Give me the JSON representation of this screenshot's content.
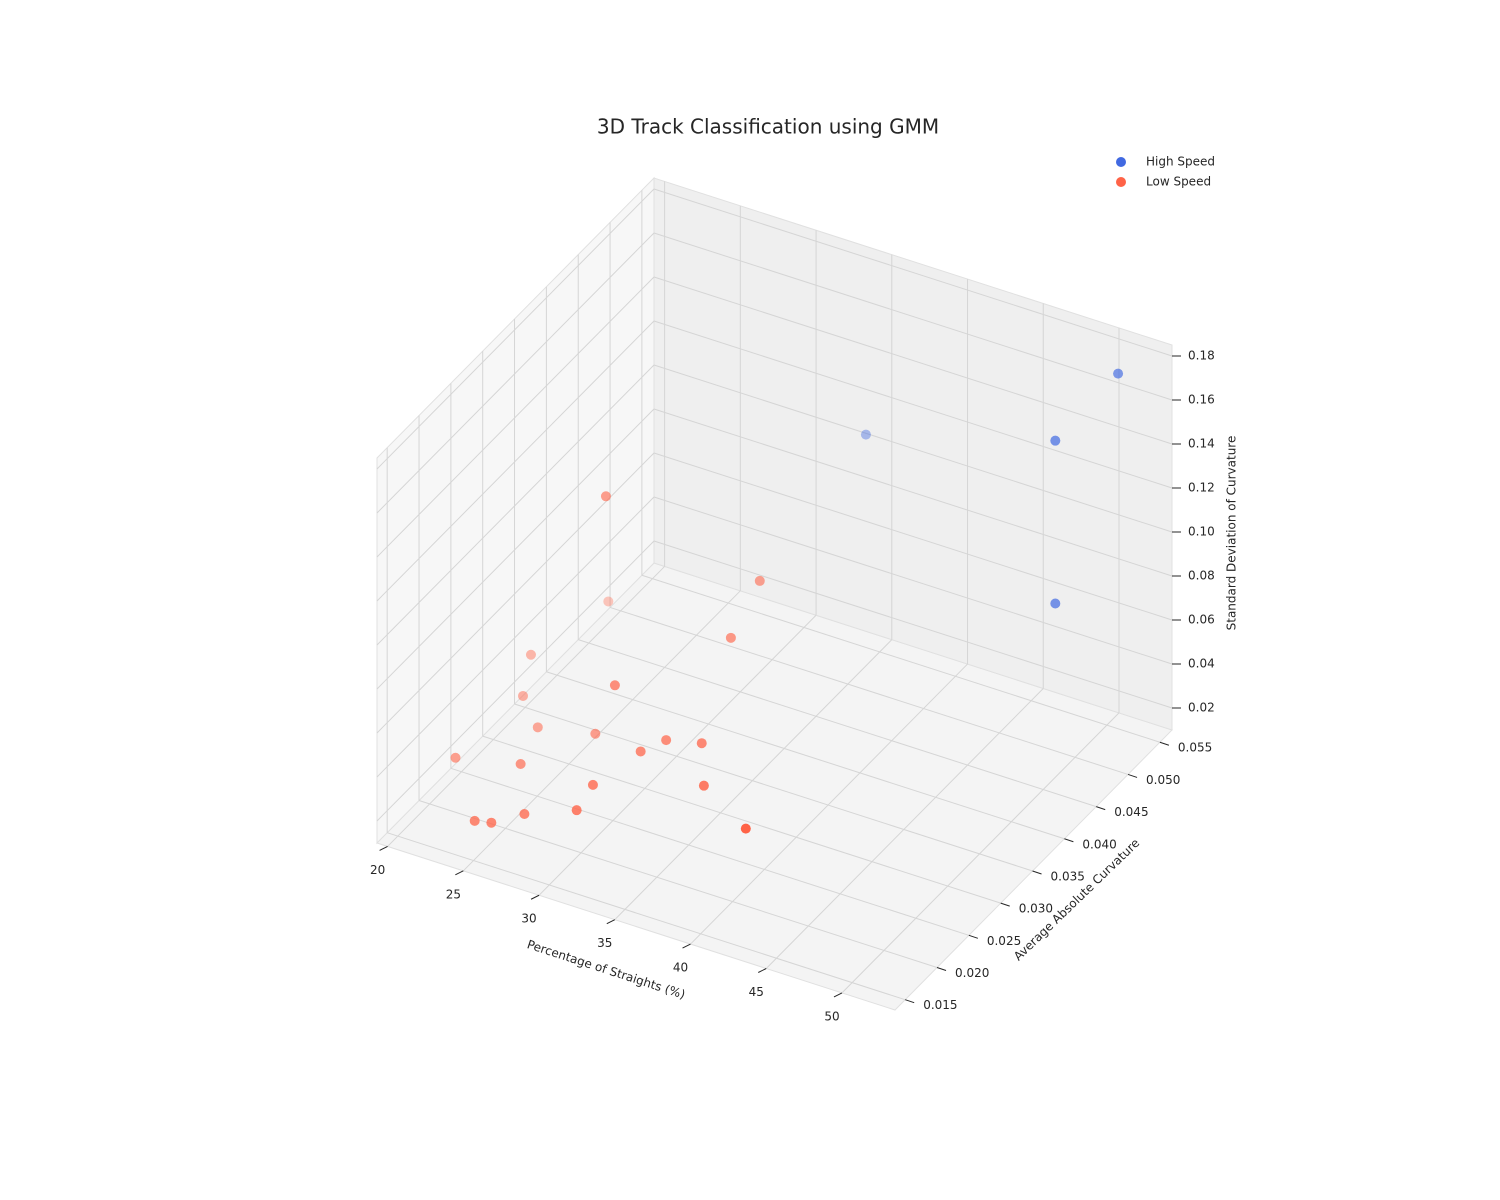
{
  "chart_data": {
    "type": "scatter3d",
    "title": "3D Track Classification using GMM",
    "xlabel": "Percentage of Straights (%)",
    "ylabel": "Average Absolute Curvature",
    "zlabel": "Standard Deviation of Curvature",
    "xlim": [
      19.3,
      53.5
    ],
    "ylim": [
      0.0134,
      0.0569
    ],
    "zlim": [
      0.01,
      0.185
    ],
    "xticks": [
      20,
      25,
      30,
      35,
      40,
      45,
      50
    ],
    "yticks": [
      0.015,
      {
        "value": 0.02,
        "label": "0.020"
      },
      0.025,
      {
        "value": 0.03,
        "label": "0.030"
      },
      0.035,
      {
        "value": 0.04,
        "label": "0.040"
      },
      0.045,
      {
        "value": 0.05,
        "label": "0.050"
      },
      0.055
    ],
    "zticks": [
      0.02,
      0.04,
      0.06,
      0.08,
      {
        "value": 0.1,
        "label": "0.10"
      },
      0.12,
      0.14,
      0.16,
      0.18
    ],
    "grid": true,
    "legend": "upper right",
    "series": [
      {
        "name": "High Speed",
        "color": "#4169e1",
        "x": [
          52,
          50,
          50,
          35.1
        ],
        "y": [
          0.052,
          0.0469,
          0.0469,
          0.0526
        ],
        "z": [
          0.183,
          0.163,
          0.089,
          0.116
        ]
      },
      {
        "name": "Low Speed",
        "color": "#ff6347",
        "x": [
          27.1,
          21.75,
          33.6,
          33.5,
          20.3,
          20.7,
          29.5,
          22.6,
          26.4,
          32.0,
          31.2,
          34.35,
          19.9,
          24.2,
          29.9,
          36.3,
          29.75,
          26.3,
          23.9,
          25.0,
          41.8
        ],
        "y": [
          0.0308,
          0.0439,
          0.0395,
          0.0352,
          0.0352,
          0.033,
          0.0265,
          0.0308,
          0.0308,
          0.0286,
          0.0265,
          0.0286,
          0.0243,
          0.0243,
          0.0221,
          0.0243,
          0.0199,
          0.0199,
          0.0178,
          0.0178,
          0.0178
        ],
        "z": [
          0.134,
          0.036,
          0.0845,
          0.071,
          0.034,
          0.0226,
          0.066,
          0.019,
          0.0245,
          0.0405,
          0.0397,
          0.0443,
          0.0182,
          0.0249,
          0.0345,
          0.0419,
          0.0291,
          0.0197,
          0.0174,
          0.019,
          0.0536
        ]
      }
    ]
  }
}
